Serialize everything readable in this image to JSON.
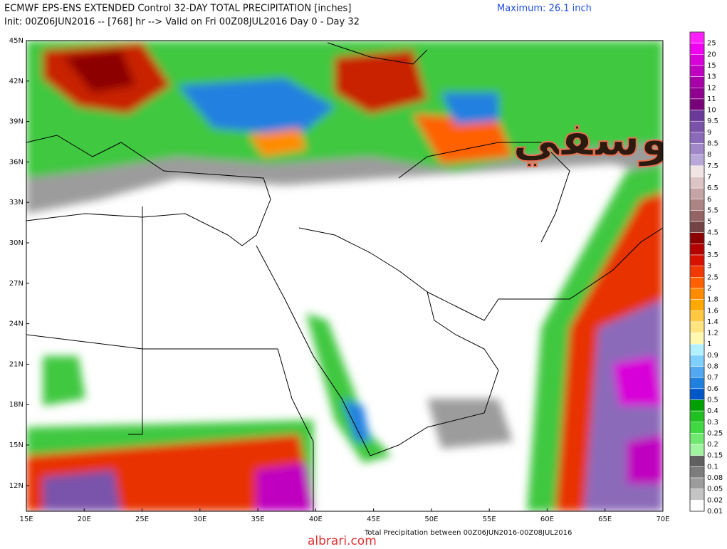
{
  "header": {
    "title": "ECMWF EPS-ENS EXTENDED Control 32-DAY TOTAL PRECIPITATION [inches]",
    "subtitle": "Init: 00Z06JUN2016 -- [768] hr --> Valid on Fri 00Z08JUL2016  Day 0 - Day 32",
    "maximum": "Maximum: 26.1 inch"
  },
  "map": {
    "lat_labels": [
      "45N",
      "42N",
      "39N",
      "36N",
      "33N",
      "30N",
      "27N",
      "24N",
      "21N",
      "18N",
      "15N",
      "12N"
    ],
    "lon_labels": [
      "15E",
      "20E",
      "25E",
      "30E",
      "35E",
      "40E",
      "45E",
      "50E",
      "55E",
      "60E",
      "65E",
      "70E"
    ],
    "footer": "Total Precipitation between 00Z06JUN2016-00Z08JUL2016"
  },
  "colorbar": [
    {
      "label": "25",
      "color": "#ff20ff"
    },
    {
      "label": "20",
      "color": "#f000f0"
    },
    {
      "label": "15",
      "color": "#d800d8"
    },
    {
      "label": "13",
      "color": "#c000c0"
    },
    {
      "label": "12",
      "color": "#a800a8"
    },
    {
      "label": "11",
      "color": "#900090"
    },
    {
      "label": "10",
      "color": "#780078"
    },
    {
      "label": "9.5",
      "color": "#6a3a9a"
    },
    {
      "label": "9",
      "color": "#7a52aa"
    },
    {
      "label": "8.5",
      "color": "#8c6aba"
    },
    {
      "label": "8",
      "color": "#a088c8"
    },
    {
      "label": "7.5",
      "color": "#b8a8d8"
    },
    {
      "label": "7",
      "color": "#f0e4e4"
    },
    {
      "label": "6.5",
      "color": "#dcc4c4"
    },
    {
      "label": "6",
      "color": "#c4a4a4"
    },
    {
      "label": "5.5",
      "color": "#ac8484"
    },
    {
      "label": "5",
      "color": "#946464"
    },
    {
      "label": "4.5",
      "color": "#744444"
    },
    {
      "label": "4",
      "color": "#8c0000"
    },
    {
      "label": "3.5",
      "color": "#b40000"
    },
    {
      "label": "3",
      "color": "#d81000"
    },
    {
      "label": "2.5",
      "color": "#f03800"
    },
    {
      "label": "2",
      "color": "#ff6000"
    },
    {
      "label": "1.8",
      "color": "#ff8c00"
    },
    {
      "label": "1.6",
      "color": "#ffa800"
    },
    {
      "label": "1.4",
      "color": "#ffc840"
    },
    {
      "label": "1.2",
      "color": "#ffe480"
    },
    {
      "label": "1",
      "color": "#fff8b0"
    },
    {
      "label": "0.9",
      "color": "#b0f0ff"
    },
    {
      "label": "0.8",
      "color": "#80d0ff"
    },
    {
      "label": "0.7",
      "color": "#50a8f0"
    },
    {
      "label": "0.6",
      "color": "#2080e0"
    },
    {
      "label": "0.5",
      "color": "#0058c8"
    },
    {
      "label": "0.4",
      "color": "#00a000"
    },
    {
      "label": "0.3",
      "color": "#20c020"
    },
    {
      "label": "0.25",
      "color": "#40d840"
    },
    {
      "label": "0.2",
      "color": "#70e870"
    },
    {
      "label": "0.15",
      "color": "#a0f4a0"
    },
    {
      "label": "0.1",
      "color": "#606060"
    },
    {
      "label": "0.08",
      "color": "#7c7c7c"
    },
    {
      "label": "0.05",
      "color": "#9c9c9c"
    },
    {
      "label": "0.02",
      "color": "#c4c4c4"
    },
    {
      "label": "0.01",
      "color": "#ffffff"
    }
  ],
  "watermark": {
    "arabic": "اليوسفي",
    "site": "albrari.com"
  }
}
